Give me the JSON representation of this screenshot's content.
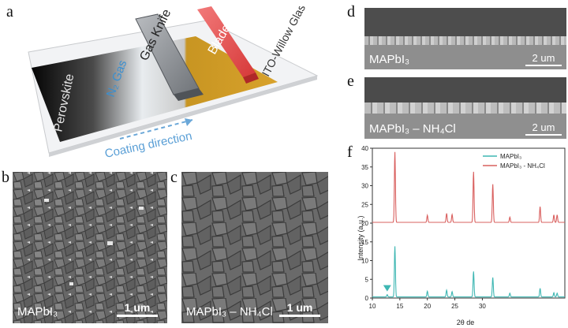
{
  "panels": {
    "a": "a",
    "b": "b",
    "c": "c",
    "d": "d",
    "e": "e",
    "f": "f"
  },
  "schematic": {
    "perovskite": "Perovskite",
    "n2gas": "N₂ Gas",
    "gas_knife": "Gas Knife",
    "blade": "Blade",
    "substrate": "ITO-Willow Glass",
    "direction": "Coating direction"
  },
  "sem_b": {
    "label": "MAPbI₃",
    "scale": "1 um"
  },
  "sem_c": {
    "label": "MAPbI₃ – NH₄Cl",
    "scale": "1 um"
  },
  "xsec_d": {
    "label": "MAPbI₃",
    "scale": "2 um"
  },
  "xsec_e": {
    "label": "MAPbI₃ – NH₄Cl",
    "scale": "2 um"
  },
  "chart_data": {
    "type": "line",
    "xlabel": "2θ de",
    "ylabel": "Intensity (a.u.)",
    "xlim": [
      10,
      45
    ],
    "ylim": [
      0,
      40
    ],
    "xticks": [
      10,
      15,
      20,
      25,
      30
    ],
    "yticks": [
      0,
      5,
      10,
      15,
      20,
      25,
      30,
      35,
      40
    ],
    "legend_position": "top-right",
    "series": [
      {
        "name": "MAPbI₃",
        "color": "#3fb7b3",
        "baseline": 0.3,
        "peaks": [
          [
            12.7,
            0.6
          ],
          [
            14.1,
            13.5
          ],
          [
            20.0,
            1.5
          ],
          [
            23.5,
            1.8
          ],
          [
            24.5,
            1.4
          ],
          [
            28.4,
            6.8
          ],
          [
            31.9,
            5.2
          ],
          [
            35.0,
            1.0
          ],
          [
            40.5,
            2.3
          ],
          [
            43.0,
            1.1
          ],
          [
            43.6,
            1.0
          ]
        ]
      },
      {
        "name": "MAPbI₃ - NH₄Cl",
        "color": "#d9605f",
        "baseline": 20.2,
        "peaks": [
          [
            14.1,
            18.8
          ],
          [
            20.0,
            1.9
          ],
          [
            23.5,
            2.4
          ],
          [
            24.5,
            2.1
          ],
          [
            28.4,
            13.5
          ],
          [
            31.9,
            10.2
          ],
          [
            35.0,
            1.4
          ],
          [
            40.5,
            4.2
          ],
          [
            43.0,
            2.0
          ],
          [
            43.6,
            2.0
          ]
        ]
      }
    ],
    "marker": {
      "shape": "triangle-down",
      "x": 12.7,
      "y": 2.4,
      "color": "#3fb7b3"
    }
  }
}
